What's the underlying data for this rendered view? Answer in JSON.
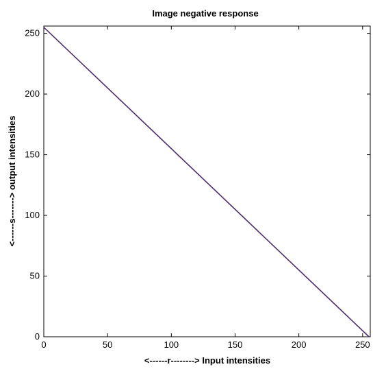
{
  "chart_data": {
    "type": "line",
    "title": "Image negative response",
    "xlabel": "<------r--------> Input intensities",
    "ylabel": "<------s-------> output intensities",
    "xlim": [
      0,
      256
    ],
    "ylim": [
      0,
      256
    ],
    "xticks": [
      0,
      50,
      100,
      150,
      200,
      250
    ],
    "yticks": [
      0,
      50,
      100,
      150,
      200,
      250
    ],
    "grid": false,
    "series": [
      {
        "x": [
          0,
          255
        ],
        "y": [
          255,
          0
        ],
        "color": "#4b2d6e"
      }
    ]
  }
}
